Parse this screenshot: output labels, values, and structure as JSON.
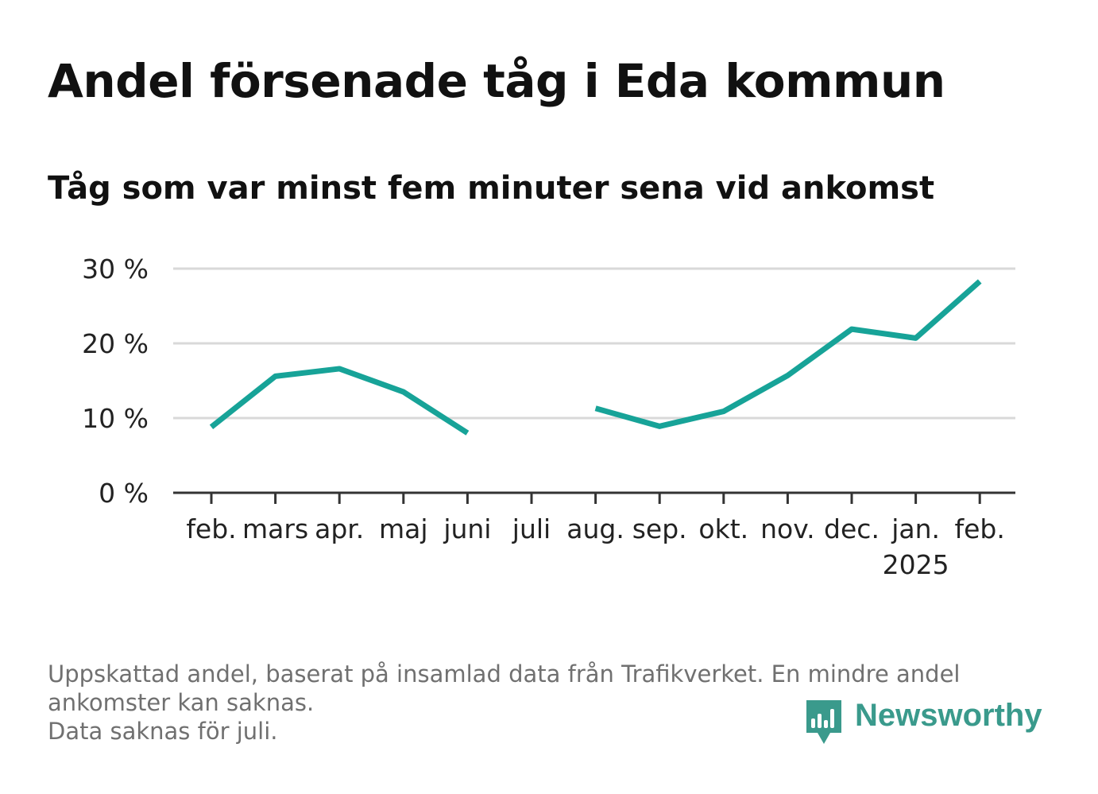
{
  "title": "Andel försenade tåg i Eda kommun",
  "subtitle": "Tåg som var minst fem minuter sena vid ankomst",
  "footnote": {
    "line1": "Uppskattad andel, baserat på insamlad data från Trafikverket. En mindre andel",
    "line2": "ankomster kan saknas.",
    "line3": "Data saknas för juli."
  },
  "logo": {
    "text": "Newsworthy",
    "icon": "bar-chart-speech-bubble-icon"
  },
  "colors": {
    "line": "#17a398",
    "grid": "#d9d9d9",
    "axis": "#333333",
    "text": "#111111",
    "muted": "#707070",
    "brand": "#3a9a8c"
  },
  "chart_data": {
    "type": "line",
    "categories": [
      "feb.",
      "mars",
      "apr.",
      "maj",
      "juni",
      "juli",
      "aug.",
      "sep.",
      "okt.",
      "nov.",
      "dec.",
      "jan.",
      "feb."
    ],
    "category_sublabels": [
      "",
      "",
      "",
      "",
      "",
      "",
      "",
      "",
      "",
      "",
      "",
      "2025",
      ""
    ],
    "series": [
      {
        "values": [
          8.8,
          15.6,
          16.6,
          13.5,
          8.0,
          null,
          11.3,
          8.9,
          10.9,
          15.7,
          21.9,
          20.7,
          28.3
        ]
      }
    ],
    "yticks": [
      0,
      10,
      20,
      30
    ],
    "ytick_labels": [
      "0 %",
      "10 %",
      "20 %",
      "30 %"
    ],
    "ylim": [
      0,
      30
    ],
    "xlabel": "",
    "ylabel": "",
    "grid": true
  }
}
